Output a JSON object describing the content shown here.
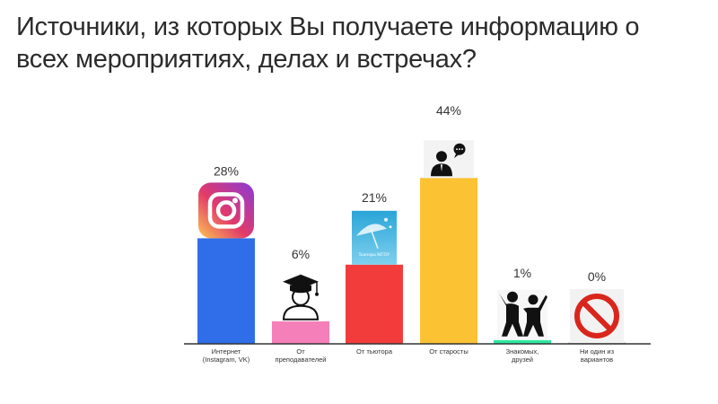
{
  "title_lines": [
    "Источники, из которых Вы получаете информацию о",
    "всех мероприятиях, делах и встречах?"
  ],
  "colors": {
    "title": "#2b2b2b",
    "axis": "#333333"
  },
  "chart_data": {
    "type": "bar",
    "categories": [
      [
        "Интернет",
        "(Instagram, VK)"
      ],
      [
        "От",
        "преподавателей"
      ],
      [
        "От тьютора"
      ],
      [
        "От старосты"
      ],
      [
        "Знакомых,",
        "друзей"
      ],
      [
        "Ни один из",
        "вариантов"
      ]
    ],
    "values": [
      28,
      6,
      21,
      44,
      1,
      0
    ],
    "value_labels": [
      "28%",
      "6%",
      "21%",
      "44%",
      "1%",
      "0%"
    ],
    "bar_colors": [
      "#2f6ee8",
      "#f57fb8",
      "#f23c3c",
      "#fbc234",
      "#2ee8a0",
      "#bdbdbd"
    ],
    "icons": [
      "instagram-icon",
      "graduate-icon",
      "tutor-logo-icon",
      "speaker-icon",
      "friends-icon",
      "prohibited-icon"
    ],
    "tutor_logo_text": "Тьюторы МГПУ",
    "ylim": [
      0,
      50
    ]
  }
}
